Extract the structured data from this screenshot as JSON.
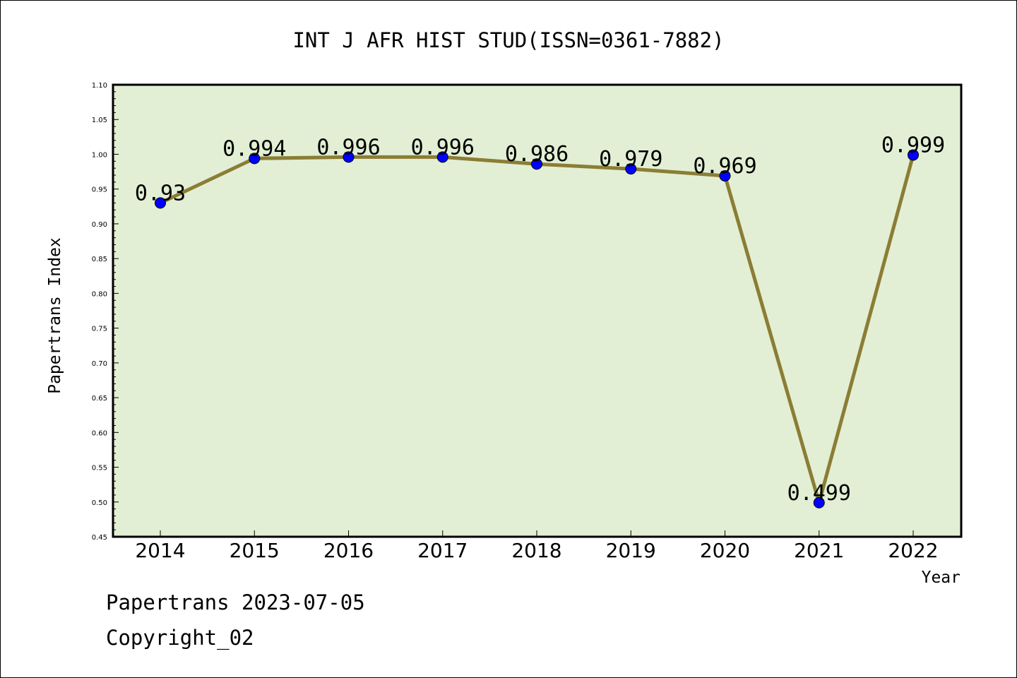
{
  "chart_data": {
    "type": "line",
    "title": "INT J AFR HIST STUD(ISSN=0361-7882)",
    "xlabel": "Year",
    "ylabel": "Papertrans Index",
    "categories": [
      "2014",
      "2015",
      "2016",
      "2017",
      "2018",
      "2019",
      "2020",
      "2021",
      "2022"
    ],
    "values": [
      0.93,
      0.994,
      0.996,
      0.996,
      0.986,
      0.979,
      0.969,
      0.499,
      0.999
    ],
    "data_labels": [
      "0.93",
      "0.994",
      "0.996",
      "0.996",
      "0.986",
      "0.979",
      "0.969",
      "0.499",
      "0.999"
    ],
    "ylim": [
      0.45,
      1.1
    ],
    "yticks": [
      "0.45",
      "0.50",
      "0.55",
      "0.60",
      "0.65",
      "0.70",
      "0.75",
      "0.80",
      "0.85",
      "0.90",
      "0.95",
      "1.00",
      "1.05",
      "1.10"
    ],
    "grid": false,
    "colors": {
      "plot_background": "#e2efd4",
      "line": "#8b7d35",
      "marker": "#0000ff"
    }
  },
  "footer": {
    "source": "Papertrans 2023-07-05",
    "copyright": "Copyright_02"
  }
}
